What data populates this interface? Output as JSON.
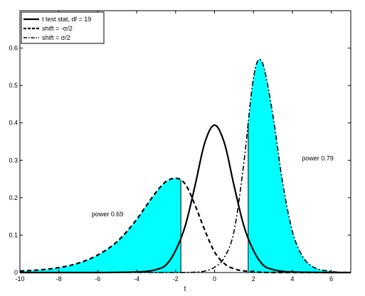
{
  "chart_data": {
    "type": "line",
    "xlabel": "t",
    "ylabel": "",
    "xlim": [
      -10,
      7
    ],
    "ylim": [
      0,
      0.7
    ],
    "xticks": [
      -10,
      -8,
      -6,
      -4,
      -2,
      0,
      2,
      4,
      6
    ],
    "yticks": [
      0,
      0.1,
      0.2,
      0.3,
      0.4,
      0.5,
      0.6
    ],
    "grid": false,
    "legend_position": "top-left",
    "fill_color": "#00ffff",
    "critical_values": [
      -1.73,
      1.73
    ],
    "series": [
      {
        "name": "t test stat, df = 19",
        "style": "solid",
        "x": [
          -10,
          -8,
          -6,
          -5,
          -4,
          -3.5,
          -3,
          -2.5,
          -2,
          -1.5,
          -1,
          -0.5,
          0,
          0.5,
          1,
          1.5,
          2,
          2.5,
          3,
          3.5,
          4,
          5,
          6,
          7
        ],
        "y": [
          0,
          0,
          0,
          0.0004,
          0.0015,
          0.003,
          0.008,
          0.02,
          0.059,
          0.126,
          0.233,
          0.347,
          0.394,
          0.347,
          0.233,
          0.126,
          0.059,
          0.02,
          0.008,
          0.003,
          0.0015,
          0.0004,
          0,
          0
        ]
      },
      {
        "name": "shift = -σ/2",
        "style": "dashed",
        "x": [
          -10,
          -9,
          -8,
          -7,
          -6,
          -5,
          -4,
          -3.5,
          -3,
          -2.5,
          -2,
          -1.5,
          -1,
          -0.5,
          0,
          0.5,
          1,
          2,
          3,
          4,
          5,
          7
        ],
        "y": [
          0.004,
          0.007,
          0.013,
          0.025,
          0.047,
          0.083,
          0.142,
          0.179,
          0.215,
          0.243,
          0.252,
          0.236,
          0.18,
          0.113,
          0.055,
          0.024,
          0.01,
          0.002,
          0,
          0,
          0,
          0
        ]
      },
      {
        "name": "shift = σ/2",
        "style": "dashdot",
        "x": [
          -10,
          -2,
          -1,
          -0.5,
          0,
          0.5,
          1,
          1.5,
          2,
          2.3,
          2.5,
          3,
          3.5,
          4,
          4.5,
          5,
          6,
          7
        ],
        "y": [
          0,
          0,
          0.001,
          0.004,
          0.014,
          0.04,
          0.11,
          0.29,
          0.52,
          0.57,
          0.555,
          0.42,
          0.24,
          0.11,
          0.045,
          0.017,
          0.003,
          0
        ]
      }
    ],
    "annotations": [
      {
        "text": "power 0.69",
        "x": -5.5,
        "y": 0.15
      },
      {
        "text": "power 0.79",
        "x": 5.3,
        "y": 0.3
      }
    ]
  }
}
